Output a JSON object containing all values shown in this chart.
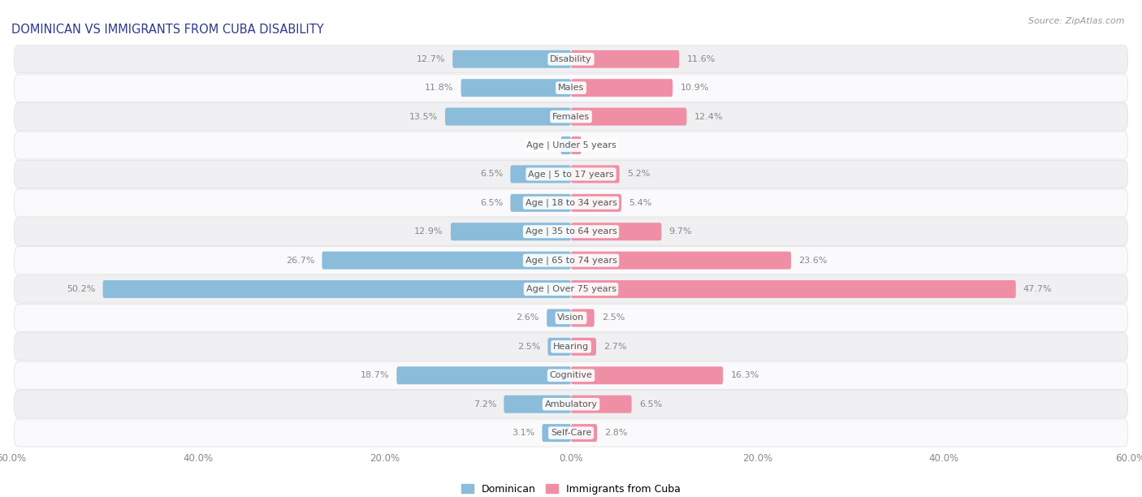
{
  "title": "DOMINICAN VS IMMIGRANTS FROM CUBA DISABILITY",
  "source": "Source: ZipAtlas.com",
  "categories": [
    "Disability",
    "Males",
    "Females",
    "Age | Under 5 years",
    "Age | 5 to 17 years",
    "Age | 18 to 34 years",
    "Age | 35 to 64 years",
    "Age | 65 to 74 years",
    "Age | Over 75 years",
    "Vision",
    "Hearing",
    "Cognitive",
    "Ambulatory",
    "Self-Care"
  ],
  "dominican": [
    12.7,
    11.8,
    13.5,
    1.1,
    6.5,
    6.5,
    12.9,
    26.7,
    50.2,
    2.6,
    2.5,
    18.7,
    7.2,
    3.1
  ],
  "cuba": [
    11.6,
    10.9,
    12.4,
    1.1,
    5.2,
    5.4,
    9.7,
    23.6,
    47.7,
    2.5,
    2.7,
    16.3,
    6.5,
    2.8
  ],
  "dominican_color": "#8BBCDA",
  "cuba_color": "#EF8FA5",
  "dominican_label": "Dominican",
  "cuba_label": "Immigrants from Cuba",
  "xlim": 60.0,
  "background_color": "#ffffff",
  "row_bg_odd": "#f0f0f2",
  "row_bg_even": "#fafafc",
  "text_color": "#888888",
  "title_color": "#2d3a8c",
  "source_color": "#999999"
}
